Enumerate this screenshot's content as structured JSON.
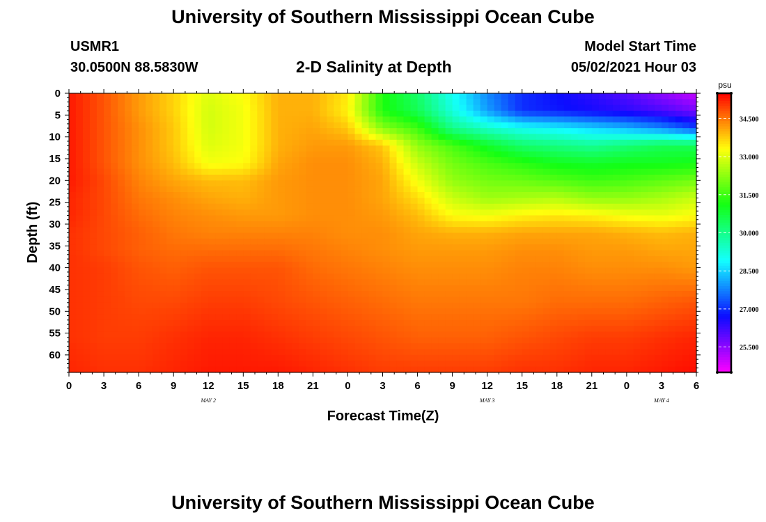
{
  "header": {
    "title": "University of Southern Mississippi Ocean Cube",
    "station": "USMR1",
    "coords": "30.0500N  88.5830W",
    "plot_title": "2-D Salinity at Depth",
    "model_start_label": "Model Start Time",
    "model_start_value": "05/02/2021 Hour 03"
  },
  "footer": {
    "title": "University of Southern Mississippi Ocean Cube"
  },
  "chart_data": {
    "type": "heatmap",
    "title": "2-D Salinity at Depth",
    "xlabel": "Forecast Time(Z)",
    "ylabel": "Depth (ft)",
    "x_hours_range": [
      0,
      54
    ],
    "x_tick_step_hours": 3,
    "x_tick_labels": [
      "0",
      "3",
      "6",
      "9",
      "12",
      "15",
      "18",
      "21",
      "0",
      "3",
      "6",
      "9",
      "12",
      "15",
      "18",
      "21",
      "0",
      "3",
      "6"
    ],
    "date_labels": [
      {
        "text": "MAY 2",
        "hour": 12
      },
      {
        "text": "MAY 3",
        "hour": 36
      },
      {
        "text": "MAY 4",
        "hour": 51
      }
    ],
    "ylim": [
      0,
      64
    ],
    "y_tick_labels": [
      "0",
      "5",
      "10",
      "15",
      "20",
      "25",
      "30",
      "35",
      "40",
      "45",
      "50",
      "55",
      "60"
    ],
    "y_tick_values": [
      0,
      5,
      10,
      15,
      20,
      25,
      30,
      35,
      40,
      45,
      50,
      55,
      60
    ],
    "colorbar": {
      "unit": "psu",
      "range": [
        24.5,
        35.5
      ],
      "labels": [
        "34.500",
        "33.000",
        "31.500",
        "30.000",
        "28.500",
        "27.000",
        "25.500"
      ],
      "label_values": [
        34.5,
        33.0,
        31.5,
        30.0,
        28.5,
        27.0,
        25.5
      ]
    },
    "grid_x_hours": [
      0,
      3,
      6,
      9,
      12,
      15,
      18,
      21,
      24,
      27,
      30,
      33,
      36,
      39,
      42,
      45,
      48,
      51,
      54
    ],
    "grid_depths_ft": [
      0,
      4,
      8,
      12,
      16,
      20,
      24,
      28,
      32,
      36,
      40,
      48,
      56,
      64
    ],
    "salinity_psu": [
      [
        35.3,
        34.8,
        34.2,
        33.7,
        33.0,
        33.3,
        34.0,
        34.0,
        33.5,
        31.2,
        30.3,
        29.0,
        27.8,
        27.0,
        26.7,
        26.4,
        26.0,
        25.5,
        25.0
      ],
      [
        35.3,
        34.8,
        34.2,
        33.7,
        32.9,
        33.2,
        34.0,
        34.0,
        33.4,
        31.2,
        30.5,
        29.2,
        28.0,
        27.0,
        26.8,
        26.6,
        26.4,
        26.1,
        25.7
      ],
      [
        35.3,
        34.8,
        34.3,
        33.8,
        32.9,
        33.2,
        34.0,
        34.1,
        33.8,
        32.2,
        31.5,
        30.0,
        29.4,
        29.0,
        28.8,
        28.5,
        28.2,
        27.8,
        27.2
      ],
      [
        35.3,
        34.8,
        34.3,
        33.8,
        33.0,
        33.2,
        34.0,
        34.2,
        34.2,
        33.8,
        32.3,
        31.6,
        30.9,
        30.3,
        30.1,
        29.9,
        30.2,
        30.5,
        30.5
      ],
      [
        35.3,
        34.8,
        34.3,
        33.9,
        33.2,
        33.3,
        34.1,
        34.3,
        34.3,
        34.0,
        32.8,
        32.0,
        31.6,
        31.3,
        31.0,
        30.9,
        31.0,
        31.0,
        31.1
      ],
      [
        35.3,
        34.9,
        34.4,
        34.1,
        33.9,
        33.9,
        34.2,
        34.3,
        34.3,
        34.1,
        33.2,
        32.3,
        32.0,
        31.9,
        31.7,
        31.5,
        31.6,
        31.8,
        32.0
      ],
      [
        35.2,
        34.9,
        34.5,
        34.3,
        34.1,
        34.0,
        34.2,
        34.3,
        34.3,
        34.1,
        33.6,
        32.8,
        32.4,
        32.5,
        32.6,
        32.3,
        32.3,
        32.5,
        32.8
      ],
      [
        35.2,
        34.9,
        34.6,
        34.4,
        34.3,
        34.2,
        34.2,
        34.3,
        34.3,
        34.2,
        33.9,
        33.3,
        33.2,
        33.4,
        33.5,
        33.4,
        33.2,
        33.1,
        33.3
      ],
      [
        35.1,
        34.9,
        34.7,
        34.5,
        34.4,
        34.4,
        34.4,
        34.4,
        34.3,
        34.3,
        34.1,
        34.0,
        34.0,
        34.1,
        34.1,
        34.1,
        34.0,
        33.9,
        34.0
      ],
      [
        35.1,
        34.9,
        34.7,
        34.6,
        34.6,
        34.6,
        34.6,
        34.5,
        34.4,
        34.3,
        34.2,
        34.2,
        34.2,
        34.3,
        34.3,
        34.2,
        34.2,
        34.1,
        34.1
      ],
      [
        35.1,
        35.0,
        34.8,
        34.7,
        34.8,
        34.8,
        34.8,
        34.6,
        34.5,
        34.4,
        34.3,
        34.3,
        34.3,
        34.4,
        34.4,
        34.3,
        34.3,
        34.3,
        34.2
      ],
      [
        35.1,
        35.0,
        34.9,
        34.9,
        35.0,
        35.0,
        34.9,
        34.8,
        34.7,
        34.6,
        34.5,
        34.5,
        34.5,
        34.5,
        34.6,
        34.6,
        34.6,
        34.7,
        34.8
      ],
      [
        35.1,
        35.0,
        35.0,
        35.1,
        35.2,
        35.2,
        35.1,
        35.0,
        34.9,
        34.8,
        34.7,
        34.7,
        34.7,
        34.8,
        34.9,
        35.0,
        35.0,
        35.1,
        35.2
      ],
      [
        35.2,
        35.1,
        35.1,
        35.2,
        35.3,
        35.3,
        35.3,
        35.2,
        35.1,
        35.0,
        35.0,
        35.0,
        35.0,
        35.1,
        35.1,
        35.2,
        35.2,
        35.3,
        35.4
      ]
    ]
  }
}
